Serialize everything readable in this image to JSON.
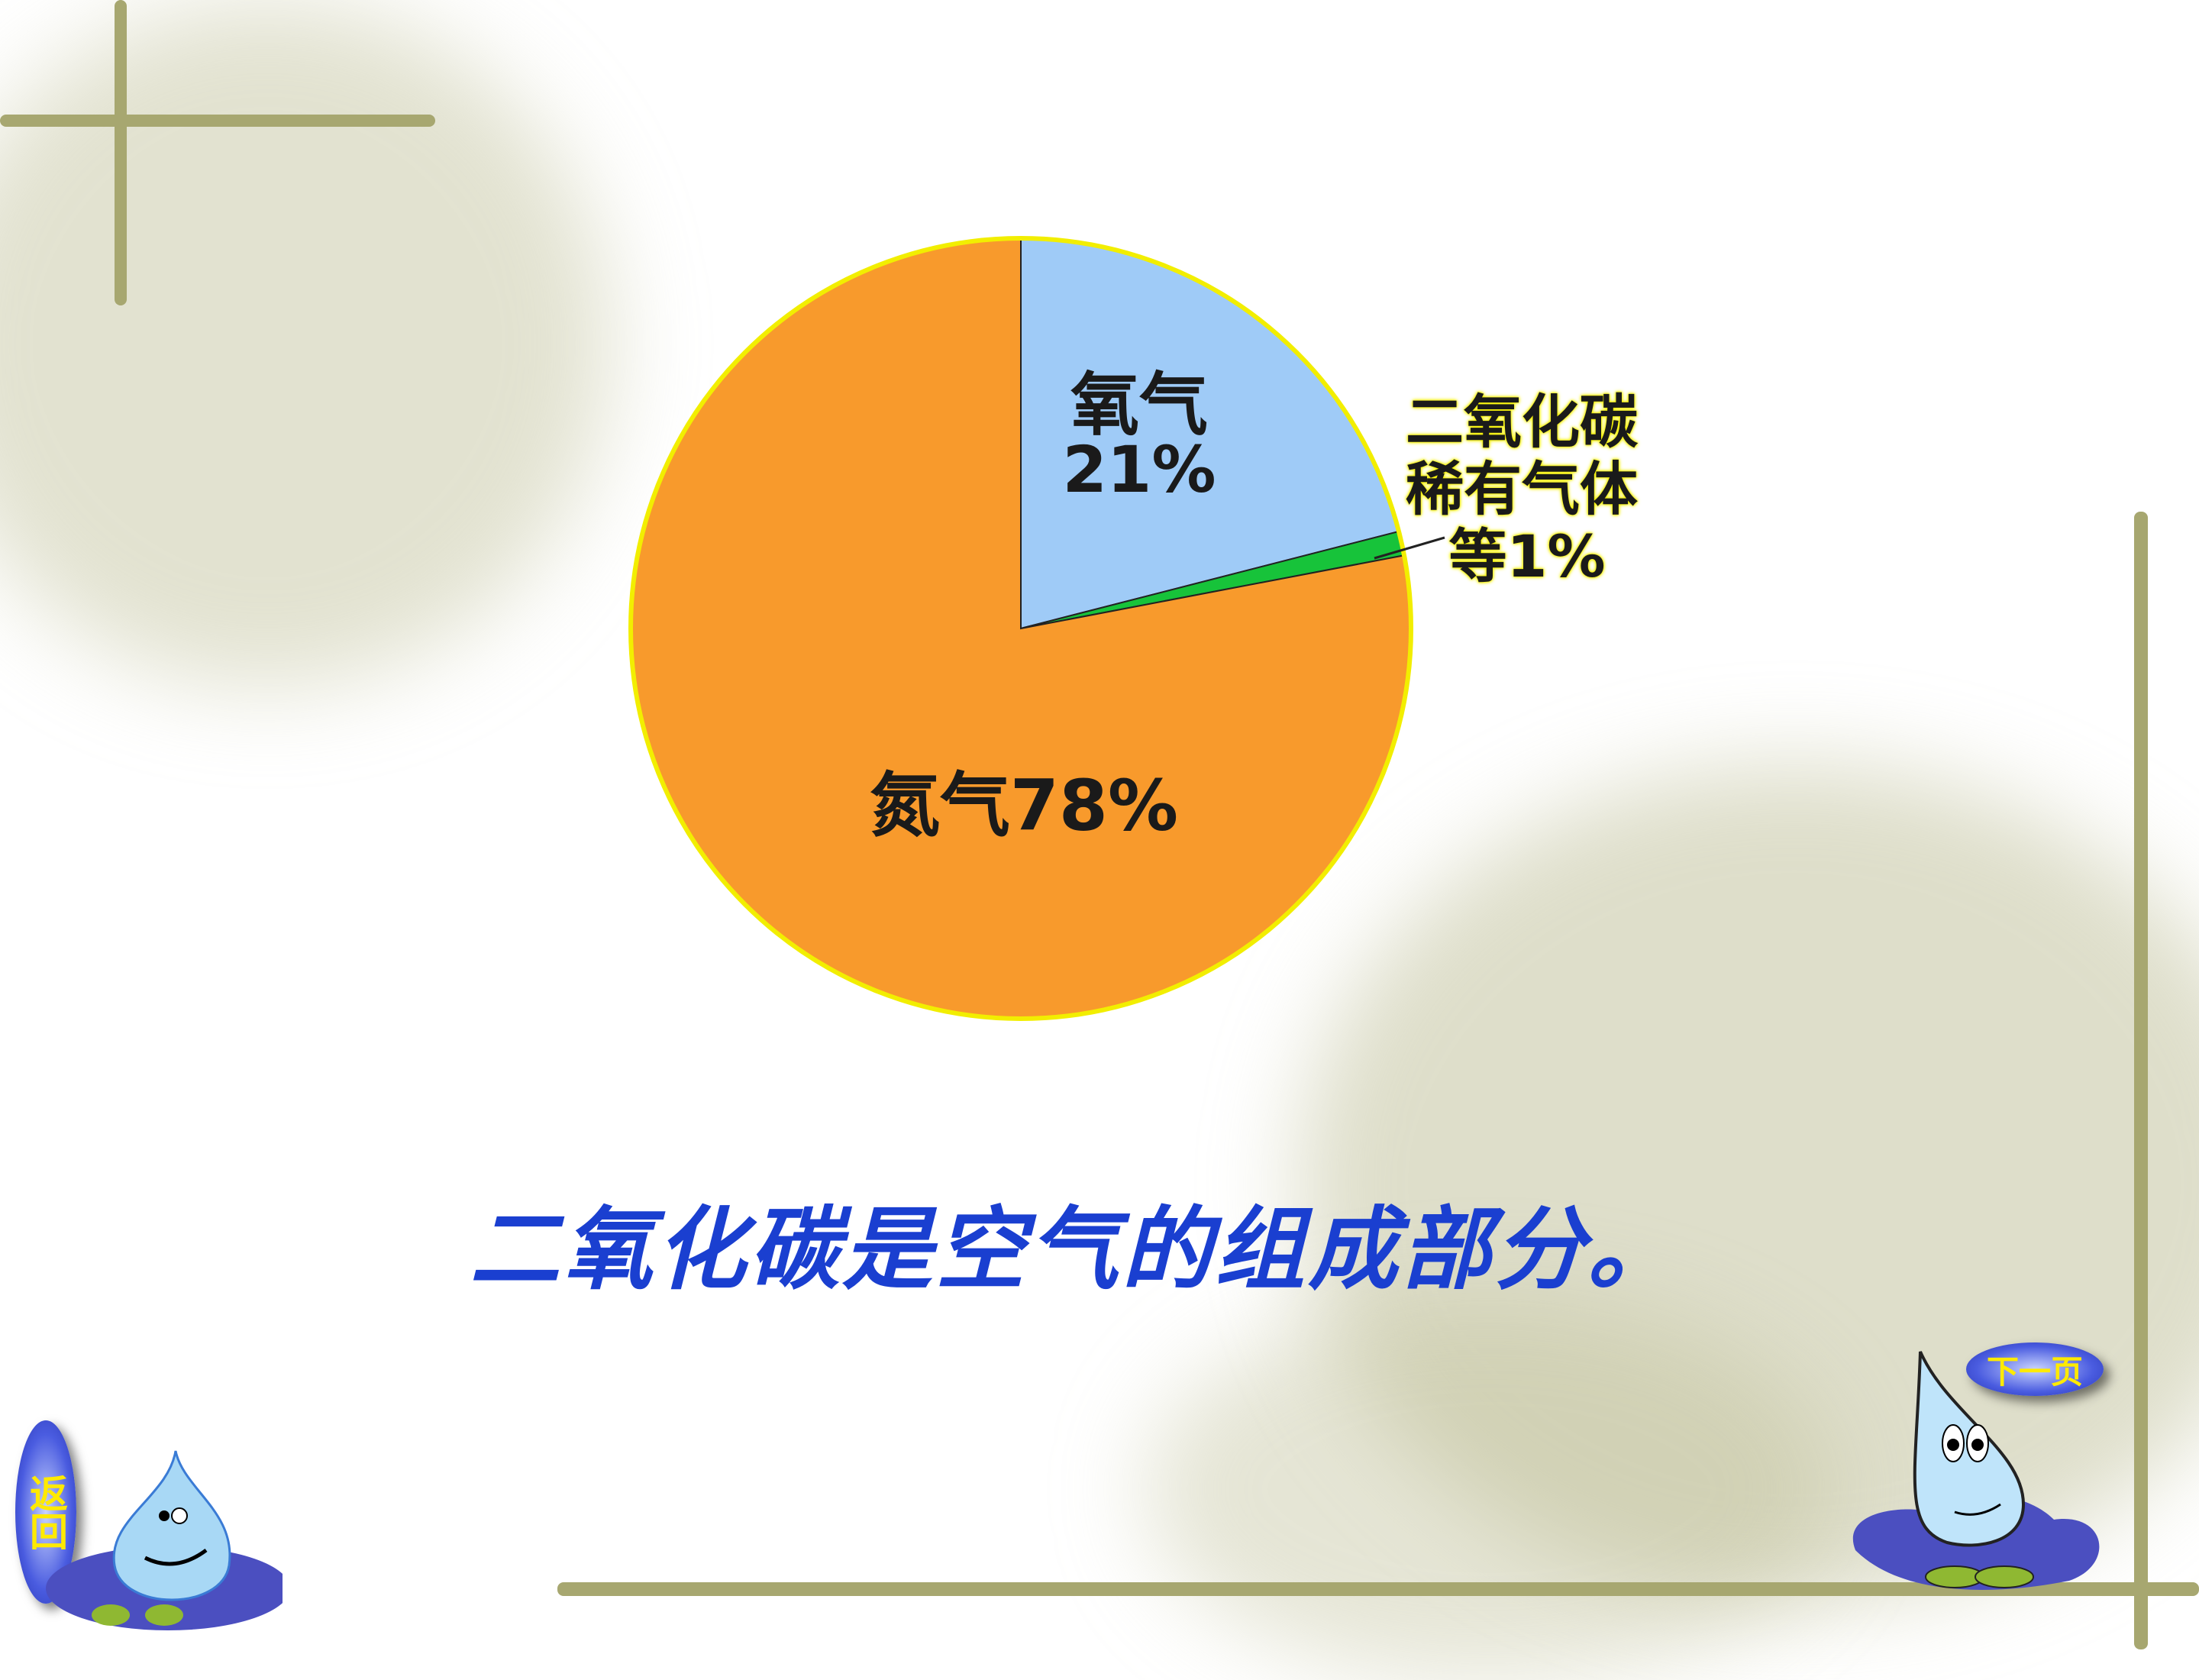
{
  "chart_data": {
    "type": "pie",
    "start": "12 o'clock, clockwise",
    "slices": [
      {
        "label": "氧气",
        "value": 21,
        "value_label": "21%",
        "color": "#9fcbf7"
      },
      {
        "label": "二氧化碳稀有气体等",
        "value": 1,
        "value_label": "1%",
        "color": "#17c33a"
      },
      {
        "label": "氮气",
        "value": 78,
        "value_label": "78%",
        "color": "#f89a2c"
      }
    ],
    "outline_color": "#f2ee00",
    "labels": {
      "oxygen_name": "氧气",
      "oxygen_pct": "21%",
      "other_line1": "二氧化碳",
      "other_line2": "稀有气体",
      "other_line3": "等1%",
      "nitrogen": "氮气78%"
    }
  },
  "caption": "二氧化碳是空气的组成部分。",
  "nav": {
    "back_label": "返回",
    "next_label": "下一页"
  },
  "colors": {
    "caption": "#1a3fd0",
    "bamboo": "#a7a770",
    "button_text": "#ffea00"
  }
}
